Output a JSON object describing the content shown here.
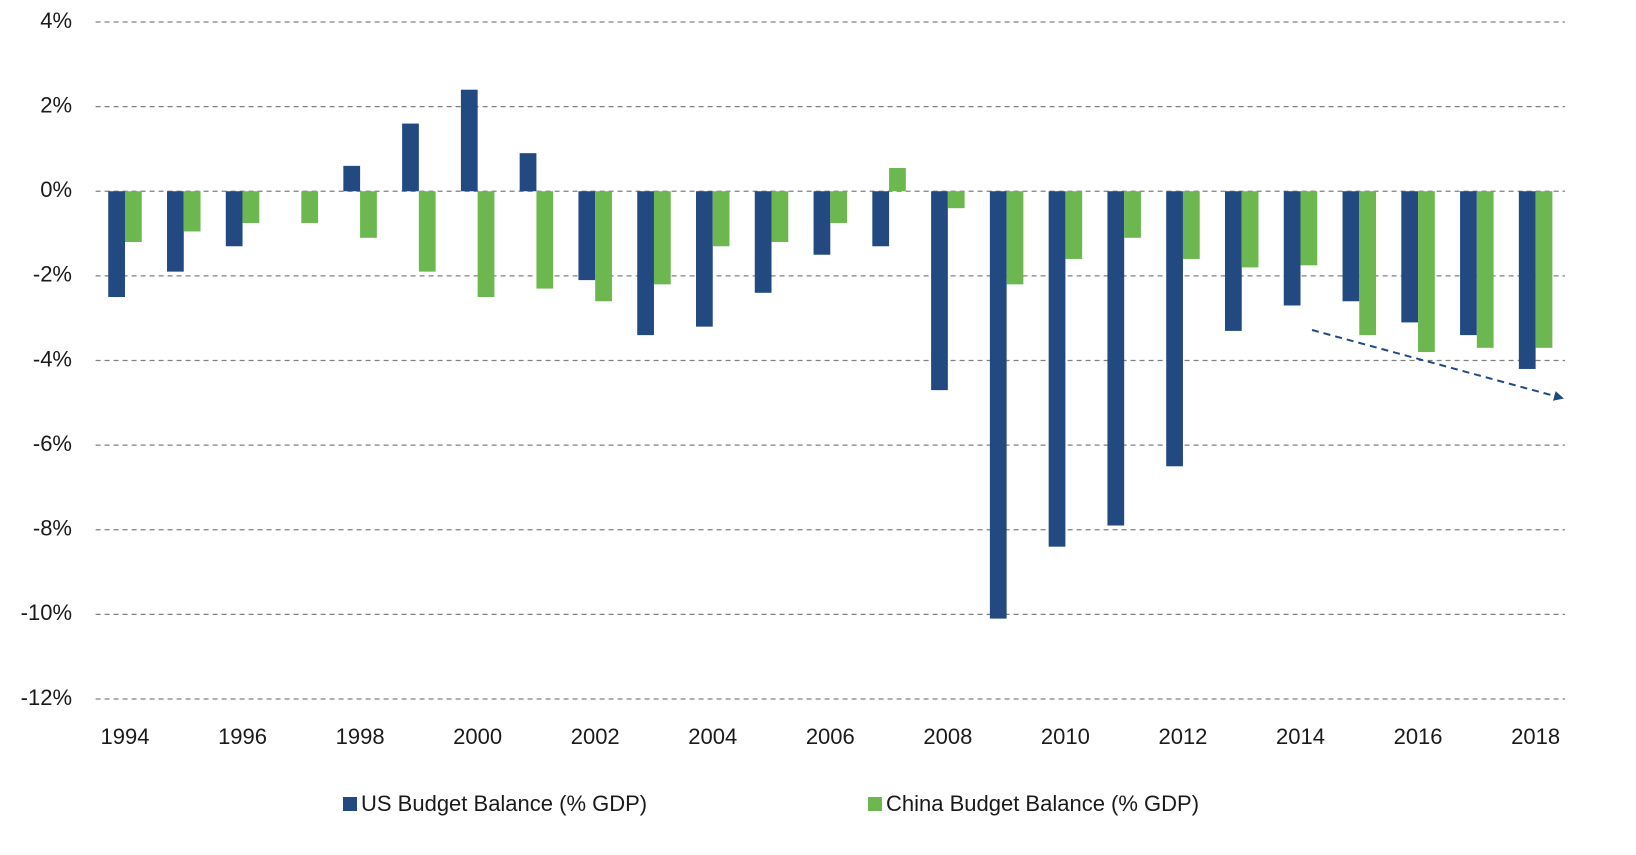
{
  "chart_data": {
    "type": "bar",
    "categories": [
      "1994",
      null,
      "1996",
      null,
      "1998",
      null,
      "2000",
      null,
      "2002",
      null,
      "2004",
      null,
      "2006",
      null,
      "2008",
      null,
      "2010",
      null,
      "2012",
      null,
      "2014",
      null,
      "2016",
      null,
      "2018"
    ],
    "series": [
      {
        "name": "US Budget Balance (% GDP)",
        "color": "#234a80",
        "values": [
          -2.5,
          -1.9,
          -1.3,
          null,
          0.6,
          1.6,
          2.4,
          0.9,
          -2.1,
          -3.4,
          -3.2,
          -2.4,
          -1.5,
          -1.3,
          -4.7,
          -10.1,
          -8.4,
          -7.9,
          -6.5,
          -3.3,
          -2.7,
          -2.6,
          -3.1,
          -3.4,
          -4.2
        ]
      },
      {
        "name": "China Budget Balance (% GDP)",
        "color": "#6cb74f",
        "values": [
          -1.2,
          -0.95,
          -0.75,
          -0.75,
          -1.1,
          -1.9,
          -2.5,
          -2.3,
          -2.6,
          -2.2,
          -1.3,
          -1.2,
          -0.75,
          0.55,
          -0.4,
          -2.2,
          -1.6,
          -1.1,
          -1.6,
          -1.8,
          -1.75,
          -3.4,
          -3.8,
          -3.7,
          -3.7
        ]
      }
    ],
    "ylim": [
      -12,
      4
    ],
    "yticks": [
      {
        "value": -12,
        "label": "-12%"
      },
      {
        "value": -10,
        "label": "-10%"
      },
      {
        "value": -8,
        "label": "-8%"
      },
      {
        "value": -6,
        "label": "-6%"
      },
      {
        "value": -4,
        "label": "-4%"
      },
      {
        "value": -2,
        "label": "-2%"
      },
      {
        "value": 0,
        "label": "0%"
      },
      {
        "value": 2,
        "label": "2%"
      },
      {
        "value": 4,
        "label": "4%"
      }
    ],
    "grid": true
  }
}
